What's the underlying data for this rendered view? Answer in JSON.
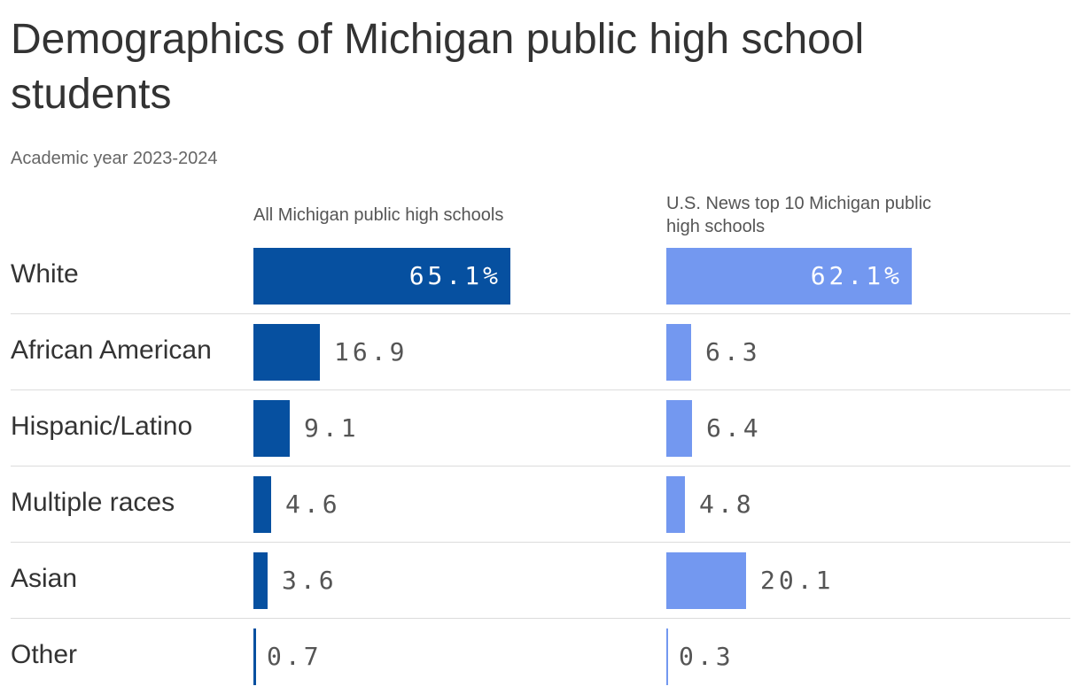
{
  "title": "Demographics of Michigan public high school students",
  "subtitle": "Academic year 2023-2024",
  "colors": {
    "series_0": "#0650a0",
    "series_1": "#7398f0"
  },
  "chart_data": {
    "type": "bar",
    "orientation": "horizontal",
    "categories": [
      "White",
      "African American",
      "Hispanic/Latino",
      "Multiple races",
      "Asian",
      "Other"
    ],
    "series": [
      {
        "name": "All Michigan public high schools",
        "values": [
          65.1,
          16.9,
          9.1,
          4.6,
          3.6,
          0.7
        ],
        "labels": [
          "65.1%",
          "16.9",
          "9.1",
          "4.6",
          "3.6",
          "0.7"
        ]
      },
      {
        "name": "U.S. News top 10 Michigan public high schools",
        "values": [
          62.1,
          6.3,
          6.4,
          4.8,
          20.1,
          0.3
        ],
        "labels": [
          "62.1%",
          "6.3",
          "6.4",
          "4.8",
          "20.1",
          "0.3"
        ]
      }
    ],
    "unit": "%",
    "xlim": [
      0,
      100
    ],
    "grid": false,
    "legend": "column-headers"
  }
}
